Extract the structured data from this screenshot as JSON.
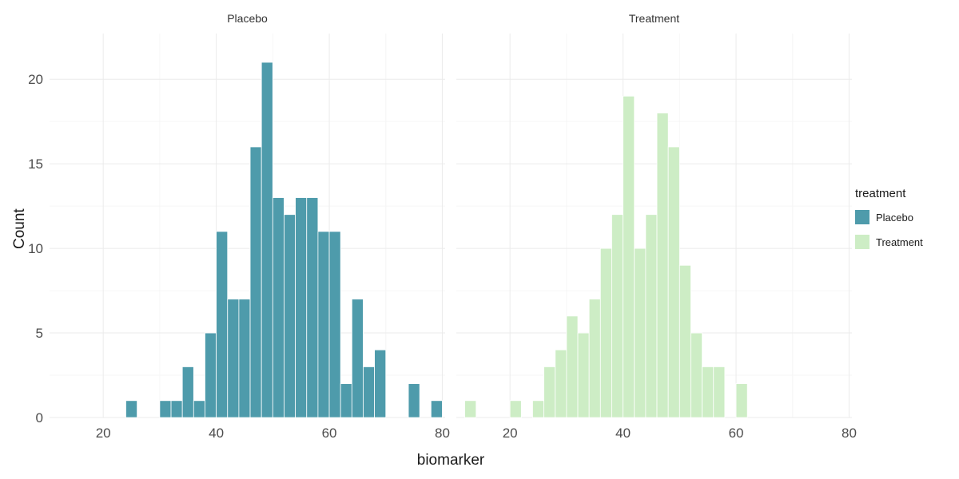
{
  "chart_data": {
    "type": "bar",
    "kind": "faceted-histogram",
    "title": "",
    "xlabel": "biomarker",
    "ylabel": "Count",
    "x_ticks": [
      20,
      40,
      60,
      80
    ],
    "y_ticks": [
      0,
      5,
      10,
      15,
      20
    ],
    "x_minor": [
      30,
      50,
      70
    ],
    "y_minor": [
      2.5,
      7.5,
      12.5,
      17.5
    ],
    "xlim": [
      10.5,
      80.5
    ],
    "ylim": [
      0,
      22.7
    ],
    "bin_width": 2,
    "grid": true,
    "legend_position": "right",
    "facets": [
      {
        "label": "Placebo",
        "color": "#4E9BAB",
        "bars": [
          [
            25,
            1
          ],
          [
            31,
            1
          ],
          [
            33,
            1
          ],
          [
            35,
            3
          ],
          [
            37,
            1
          ],
          [
            39,
            5
          ],
          [
            41,
            11
          ],
          [
            43,
            7
          ],
          [
            45,
            7
          ],
          [
            47,
            16
          ],
          [
            49,
            21
          ],
          [
            51,
            13
          ],
          [
            53,
            12
          ],
          [
            55,
            13
          ],
          [
            57,
            13
          ],
          [
            59,
            11
          ],
          [
            61,
            11
          ],
          [
            63,
            2
          ],
          [
            65,
            7
          ],
          [
            67,
            3
          ],
          [
            69,
            4
          ],
          [
            75,
            2
          ],
          [
            79,
            1
          ]
        ]
      },
      {
        "label": "Treatment",
        "color": "#CDEDC5",
        "bars": [
          [
            13,
            1
          ],
          [
            21,
            1
          ],
          [
            25,
            1
          ],
          [
            27,
            3
          ],
          [
            29,
            4
          ],
          [
            31,
            6
          ],
          [
            33,
            5
          ],
          [
            35,
            7
          ],
          [
            37,
            10
          ],
          [
            39,
            12
          ],
          [
            41,
            19
          ],
          [
            43,
            10
          ],
          [
            45,
            12
          ],
          [
            47,
            18
          ],
          [
            49,
            16
          ],
          [
            51,
            9
          ],
          [
            53,
            5
          ],
          [
            55,
            3
          ],
          [
            57,
            3
          ],
          [
            61,
            2
          ]
        ]
      }
    ],
    "legend": {
      "title": "treatment",
      "entries": [
        {
          "label": "Placebo",
          "color": "#4E9BAB"
        },
        {
          "label": "Treatment",
          "color": "#CDEDC5"
        }
      ]
    }
  },
  "colors": {
    "background": "#FFFFFF",
    "grid_major": "#EBEBEB",
    "grid_minor": "#F6F6F6",
    "axis_text": "#4D4D4D",
    "facet_text": "#333333",
    "title_text": "#1A1A1A",
    "bar_stroke": "#FFFFFF"
  }
}
